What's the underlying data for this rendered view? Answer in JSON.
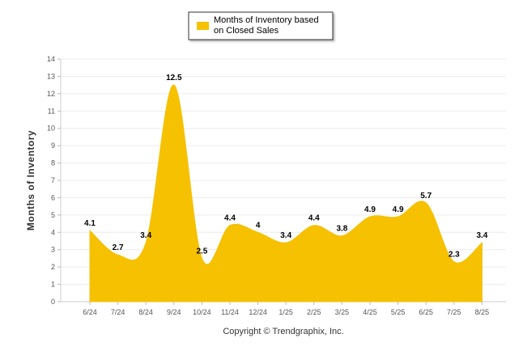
{
  "chart_data": {
    "type": "area",
    "categories": [
      "6/24",
      "7/24",
      "8/24",
      "9/24",
      "10/24",
      "11/24",
      "12/24",
      "1/25",
      "2/25",
      "3/25",
      "4/25",
      "5/25",
      "6/25",
      "7/25",
      "8/25"
    ],
    "series": [
      {
        "name": "Months of Inventory based on Closed Sales",
        "legend_lines": [
          "Months of Inventory based",
          "on Closed Sales"
        ],
        "values": [
          4.1,
          2.7,
          3.4,
          12.5,
          2.5,
          4.4,
          4,
          3.4,
          4.4,
          3.8,
          4.9,
          4.9,
          5.7,
          2.3,
          3.4
        ],
        "value_labels": [
          "4.1",
          "2.7",
          "3.4",
          "12.5",
          "2.5",
          "4.4",
          "4",
          "3.4",
          "4.4",
          "3.8",
          "4.9",
          "4.9",
          "5.7",
          "2.3",
          "3.4"
        ],
        "color": "#F5C100"
      }
    ],
    "ylabel": "Months of Inventory",
    "xlabel": "",
    "ylim": [
      0,
      14
    ],
    "yticks": [
      "0",
      "1",
      "2",
      "3",
      "4",
      "5",
      "6",
      "7",
      "8",
      "9",
      "10",
      "11",
      "12",
      "13",
      "14"
    ],
    "grid": true,
    "legend": "top-center"
  },
  "footer": {
    "copyright": "Copyright © Trendgraphix, Inc."
  }
}
